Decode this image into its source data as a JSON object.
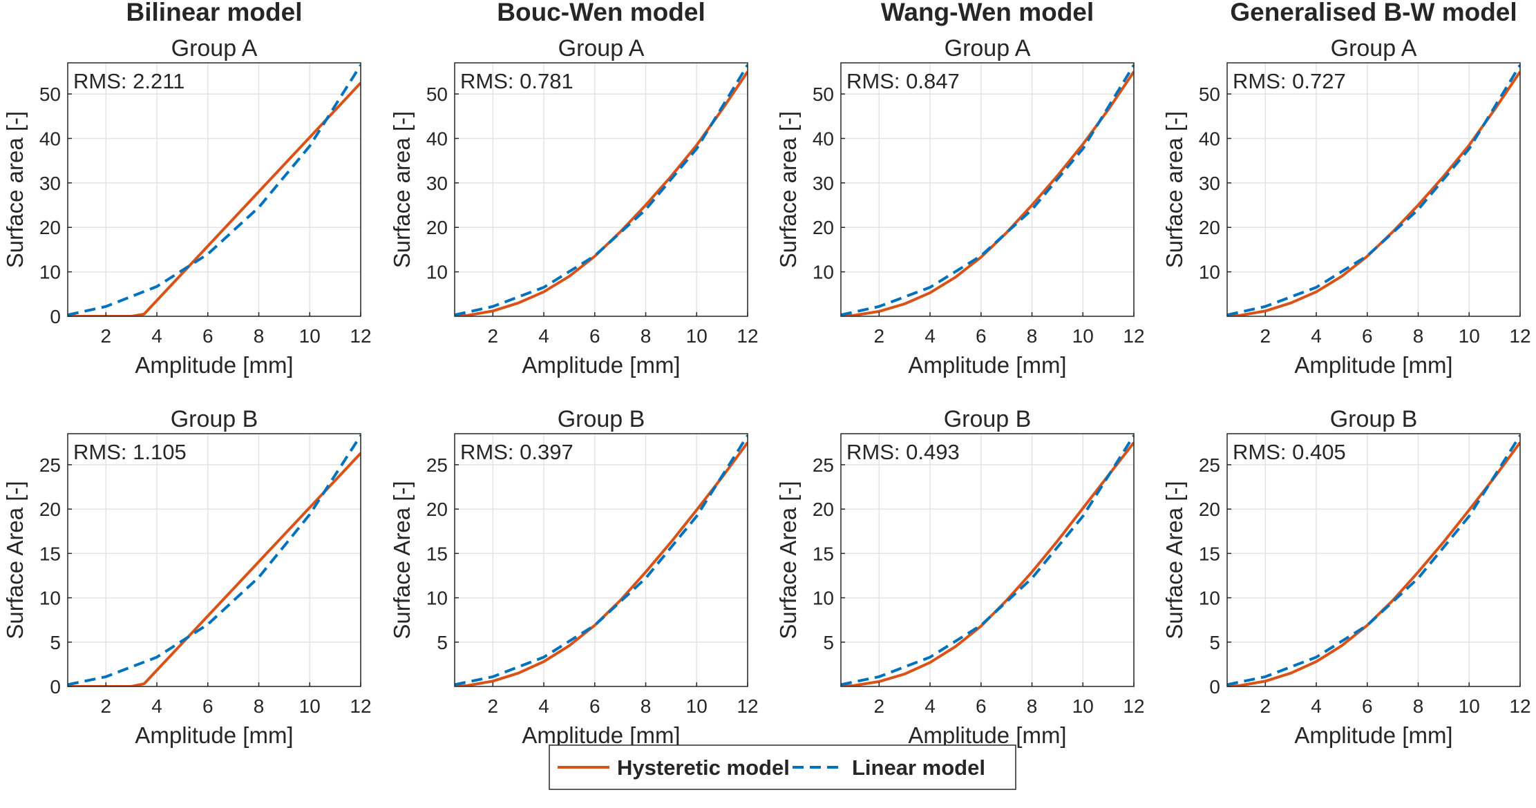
{
  "chart_data": [
    {
      "type": "line",
      "column_title": "Bilinear model",
      "title": "Group A",
      "xlabel": "Amplitude [mm]",
      "ylabel": "Surface area [-]",
      "xlim": [
        0.5,
        12
      ],
      "ylim": [
        0,
        57
      ],
      "xticks": [
        2,
        4,
        6,
        8,
        10,
        12
      ],
      "yticks": [
        0,
        10,
        20,
        30,
        40,
        50
      ],
      "grid": true,
      "annotation": "RMS: 2.211",
      "series": [
        {
          "name": "Hysteretic model",
          "style": "solid",
          "x": [
            0.5,
            3.0,
            3.5,
            12
          ],
          "y": [
            0,
            0,
            0.5,
            52.5
          ]
        },
        {
          "name": "Linear model",
          "style": "dashed",
          "x": [
            0.5,
            2,
            4,
            6,
            8,
            10,
            12
          ],
          "y": [
            0.3,
            2.2,
            6.7,
            14,
            24.5,
            38.3,
            56.5
          ]
        }
      ]
    },
    {
      "type": "line",
      "column_title": "Bouc-Wen model",
      "title": "Group A",
      "xlabel": "Amplitude [mm]",
      "ylabel": "Surface area [-]",
      "xlim": [
        0.5,
        12
      ],
      "ylim": [
        0,
        57
      ],
      "xticks": [
        2,
        4,
        6,
        8,
        10,
        12
      ],
      "yticks": [
        10,
        20,
        30,
        40,
        50
      ],
      "grid": true,
      "annotation": "RMS: 0.781",
      "series": [
        {
          "name": "Hysteretic model",
          "style": "solid",
          "x": [
            0.5,
            1,
            2,
            3,
            4,
            5,
            6,
            7,
            8,
            9,
            10,
            11,
            12
          ],
          "y": [
            0,
            0.2,
            1.2,
            3,
            5.5,
            9,
            13.5,
            19,
            25,
            31.5,
            38.5,
            46.5,
            55
          ]
        },
        {
          "name": "Linear model",
          "style": "dashed",
          "x": [
            0.5,
            2,
            4,
            6,
            8,
            10,
            12
          ],
          "y": [
            0.3,
            2.2,
            6.5,
            13.6,
            24,
            37.7,
            56.5
          ]
        }
      ]
    },
    {
      "type": "line",
      "column_title": "Wang-Wen model",
      "title": "Group A",
      "xlabel": "Amplitude [mm]",
      "ylabel": "Surface area [-]",
      "xlim": [
        0.5,
        12
      ],
      "ylim": [
        0,
        57
      ],
      "xticks": [
        2,
        4,
        6,
        8,
        10,
        12
      ],
      "yticks": [
        10,
        20,
        30,
        40,
        50
      ],
      "grid": true,
      "annotation": "RMS: 0.847",
      "series": [
        {
          "name": "Hysteretic model",
          "style": "solid",
          "x": [
            0.5,
            1,
            2,
            3,
            4,
            5,
            6,
            7,
            8,
            9,
            10,
            11,
            12
          ],
          "y": [
            0,
            0.2,
            1.1,
            2.8,
            5.3,
            8.8,
            13.3,
            18.8,
            25,
            31.6,
            38.7,
            46.5,
            55
          ]
        },
        {
          "name": "Linear model",
          "style": "dashed",
          "x": [
            0.5,
            2,
            4,
            6,
            8,
            10,
            12
          ],
          "y": [
            0.3,
            2.2,
            6.5,
            13.6,
            24,
            37.7,
            56.5
          ]
        }
      ]
    },
    {
      "type": "line",
      "column_title": "Generalised B-W model",
      "title": "Group A",
      "xlabel": "Amplitude [mm]",
      "ylabel": "Surface area [-]",
      "xlim": [
        0.5,
        12
      ],
      "ylim": [
        0,
        57
      ],
      "xticks": [
        2,
        4,
        6,
        8,
        10,
        12
      ],
      "yticks": [
        10,
        20,
        30,
        40,
        50
      ],
      "grid": true,
      "annotation": "RMS: 0.727",
      "series": [
        {
          "name": "Hysteretic model",
          "style": "solid",
          "x": [
            0.5,
            1,
            2,
            3,
            4,
            5,
            6,
            7,
            8,
            9,
            10,
            11,
            12
          ],
          "y": [
            0,
            0.2,
            1.2,
            3,
            5.5,
            9,
            13.5,
            19,
            25,
            31.5,
            38.5,
            46.5,
            55
          ]
        },
        {
          "name": "Linear model",
          "style": "dashed",
          "x": [
            0.5,
            2,
            4,
            6,
            8,
            10,
            12
          ],
          "y": [
            0.3,
            2.2,
            6.5,
            13.6,
            24,
            37.7,
            56.5
          ]
        }
      ]
    },
    {
      "type": "line",
      "column_title": "",
      "title": "Group B",
      "xlabel": "Amplitude [mm]",
      "ylabel": "Surface Area [-]",
      "xlim": [
        0.5,
        12
      ],
      "ylim": [
        0,
        28.5
      ],
      "xticks": [
        2,
        4,
        6,
        8,
        10,
        12
      ],
      "yticks": [
        0,
        5,
        10,
        15,
        20,
        25
      ],
      "grid": true,
      "annotation": "RMS: 1.105",
      "series": [
        {
          "name": "Hysteretic model",
          "style": "solid",
          "x": [
            0.5,
            3.0,
            3.5,
            12
          ],
          "y": [
            0,
            0,
            0.3,
            26.3
          ]
        },
        {
          "name": "Linear model",
          "style": "dashed",
          "x": [
            0.5,
            2,
            4,
            6,
            8,
            10,
            12
          ],
          "y": [
            0.2,
            1.1,
            3.3,
            7,
            12.3,
            19.4,
            28.3
          ]
        }
      ]
    },
    {
      "type": "line",
      "column_title": "",
      "title": "Group B",
      "xlabel": "Amplitude [mm]",
      "ylabel": "Surface Area [-]",
      "xlim": [
        0.5,
        12
      ],
      "ylim": [
        0,
        28.5
      ],
      "xticks": [
        2,
        4,
        6,
        8,
        10,
        12
      ],
      "yticks": [
        5,
        10,
        15,
        20,
        25
      ],
      "grid": true,
      "annotation": "RMS: 0.397",
      "series": [
        {
          "name": "Hysteretic model",
          "style": "solid",
          "x": [
            0.5,
            1,
            2,
            3,
            4,
            5,
            6,
            7,
            8,
            9,
            10,
            11,
            12
          ],
          "y": [
            0,
            0.1,
            0.6,
            1.5,
            2.8,
            4.6,
            6.9,
            9.7,
            12.9,
            16.3,
            19.9,
            23.6,
            27.5
          ]
        },
        {
          "name": "Linear model",
          "style": "dashed",
          "x": [
            0.5,
            2,
            4,
            6,
            8,
            10,
            12
          ],
          "y": [
            0.2,
            1.1,
            3.3,
            6.9,
            12.2,
            19.2,
            28.3
          ]
        }
      ]
    },
    {
      "type": "line",
      "column_title": "",
      "title": "Group B",
      "xlabel": "Amplitude [mm]",
      "ylabel": "Surface Area [-]",
      "xlim": [
        0.5,
        12
      ],
      "ylim": [
        0,
        28.5
      ],
      "xticks": [
        2,
        4,
        6,
        8,
        10,
        12
      ],
      "yticks": [
        5,
        10,
        15,
        20,
        25
      ],
      "grid": true,
      "annotation": "RMS: 0.493",
      "series": [
        {
          "name": "Hysteretic model",
          "style": "solid",
          "x": [
            0.5,
            1,
            2,
            3,
            4,
            5,
            6,
            7,
            8,
            9,
            10,
            11,
            12
          ],
          "y": [
            0,
            0.1,
            0.55,
            1.4,
            2.7,
            4.5,
            6.8,
            9.7,
            12.9,
            16.4,
            20.1,
            23.8,
            27.5
          ]
        },
        {
          "name": "Linear model",
          "style": "dashed",
          "x": [
            0.5,
            2,
            4,
            6,
            8,
            10,
            12
          ],
          "y": [
            0.2,
            1.1,
            3.3,
            6.9,
            12.2,
            19.2,
            28.3
          ]
        }
      ]
    },
    {
      "type": "line",
      "column_title": "",
      "title": "Group B",
      "xlabel": "Amplitude [mm]",
      "ylabel": "Surface Area [-]",
      "xlim": [
        0.5,
        12
      ],
      "ylim": [
        0,
        28.5
      ],
      "xticks": [
        2,
        4,
        6,
        8,
        10,
        12
      ],
      "yticks": [
        0,
        5,
        10,
        15,
        20,
        25
      ],
      "grid": true,
      "annotation": "RMS: 0.405",
      "series": [
        {
          "name": "Hysteretic model",
          "style": "solid",
          "x": [
            0.5,
            1,
            2,
            3,
            4,
            5,
            6,
            7,
            8,
            9,
            10,
            11,
            12
          ],
          "y": [
            0,
            0.1,
            0.6,
            1.5,
            2.8,
            4.6,
            6.9,
            9.7,
            12.9,
            16.3,
            19.9,
            23.6,
            27.5
          ]
        },
        {
          "name": "Linear model",
          "style": "dashed",
          "x": [
            0.5,
            2,
            4,
            6,
            8,
            10,
            12
          ],
          "y": [
            0.2,
            1.1,
            3.3,
            6.9,
            12.2,
            19.2,
            28.3
          ]
        }
      ]
    }
  ],
  "legend": {
    "placement": "bottom-center",
    "entries": [
      {
        "label": "Hysteretic model",
        "style": "solid"
      },
      {
        "label": "Linear model",
        "style": "dashed"
      }
    ]
  },
  "colors": {
    "hysteretic": "#d95319",
    "linear": "#0072bd",
    "axis": "#262626",
    "grid": "#e3e3e3"
  }
}
